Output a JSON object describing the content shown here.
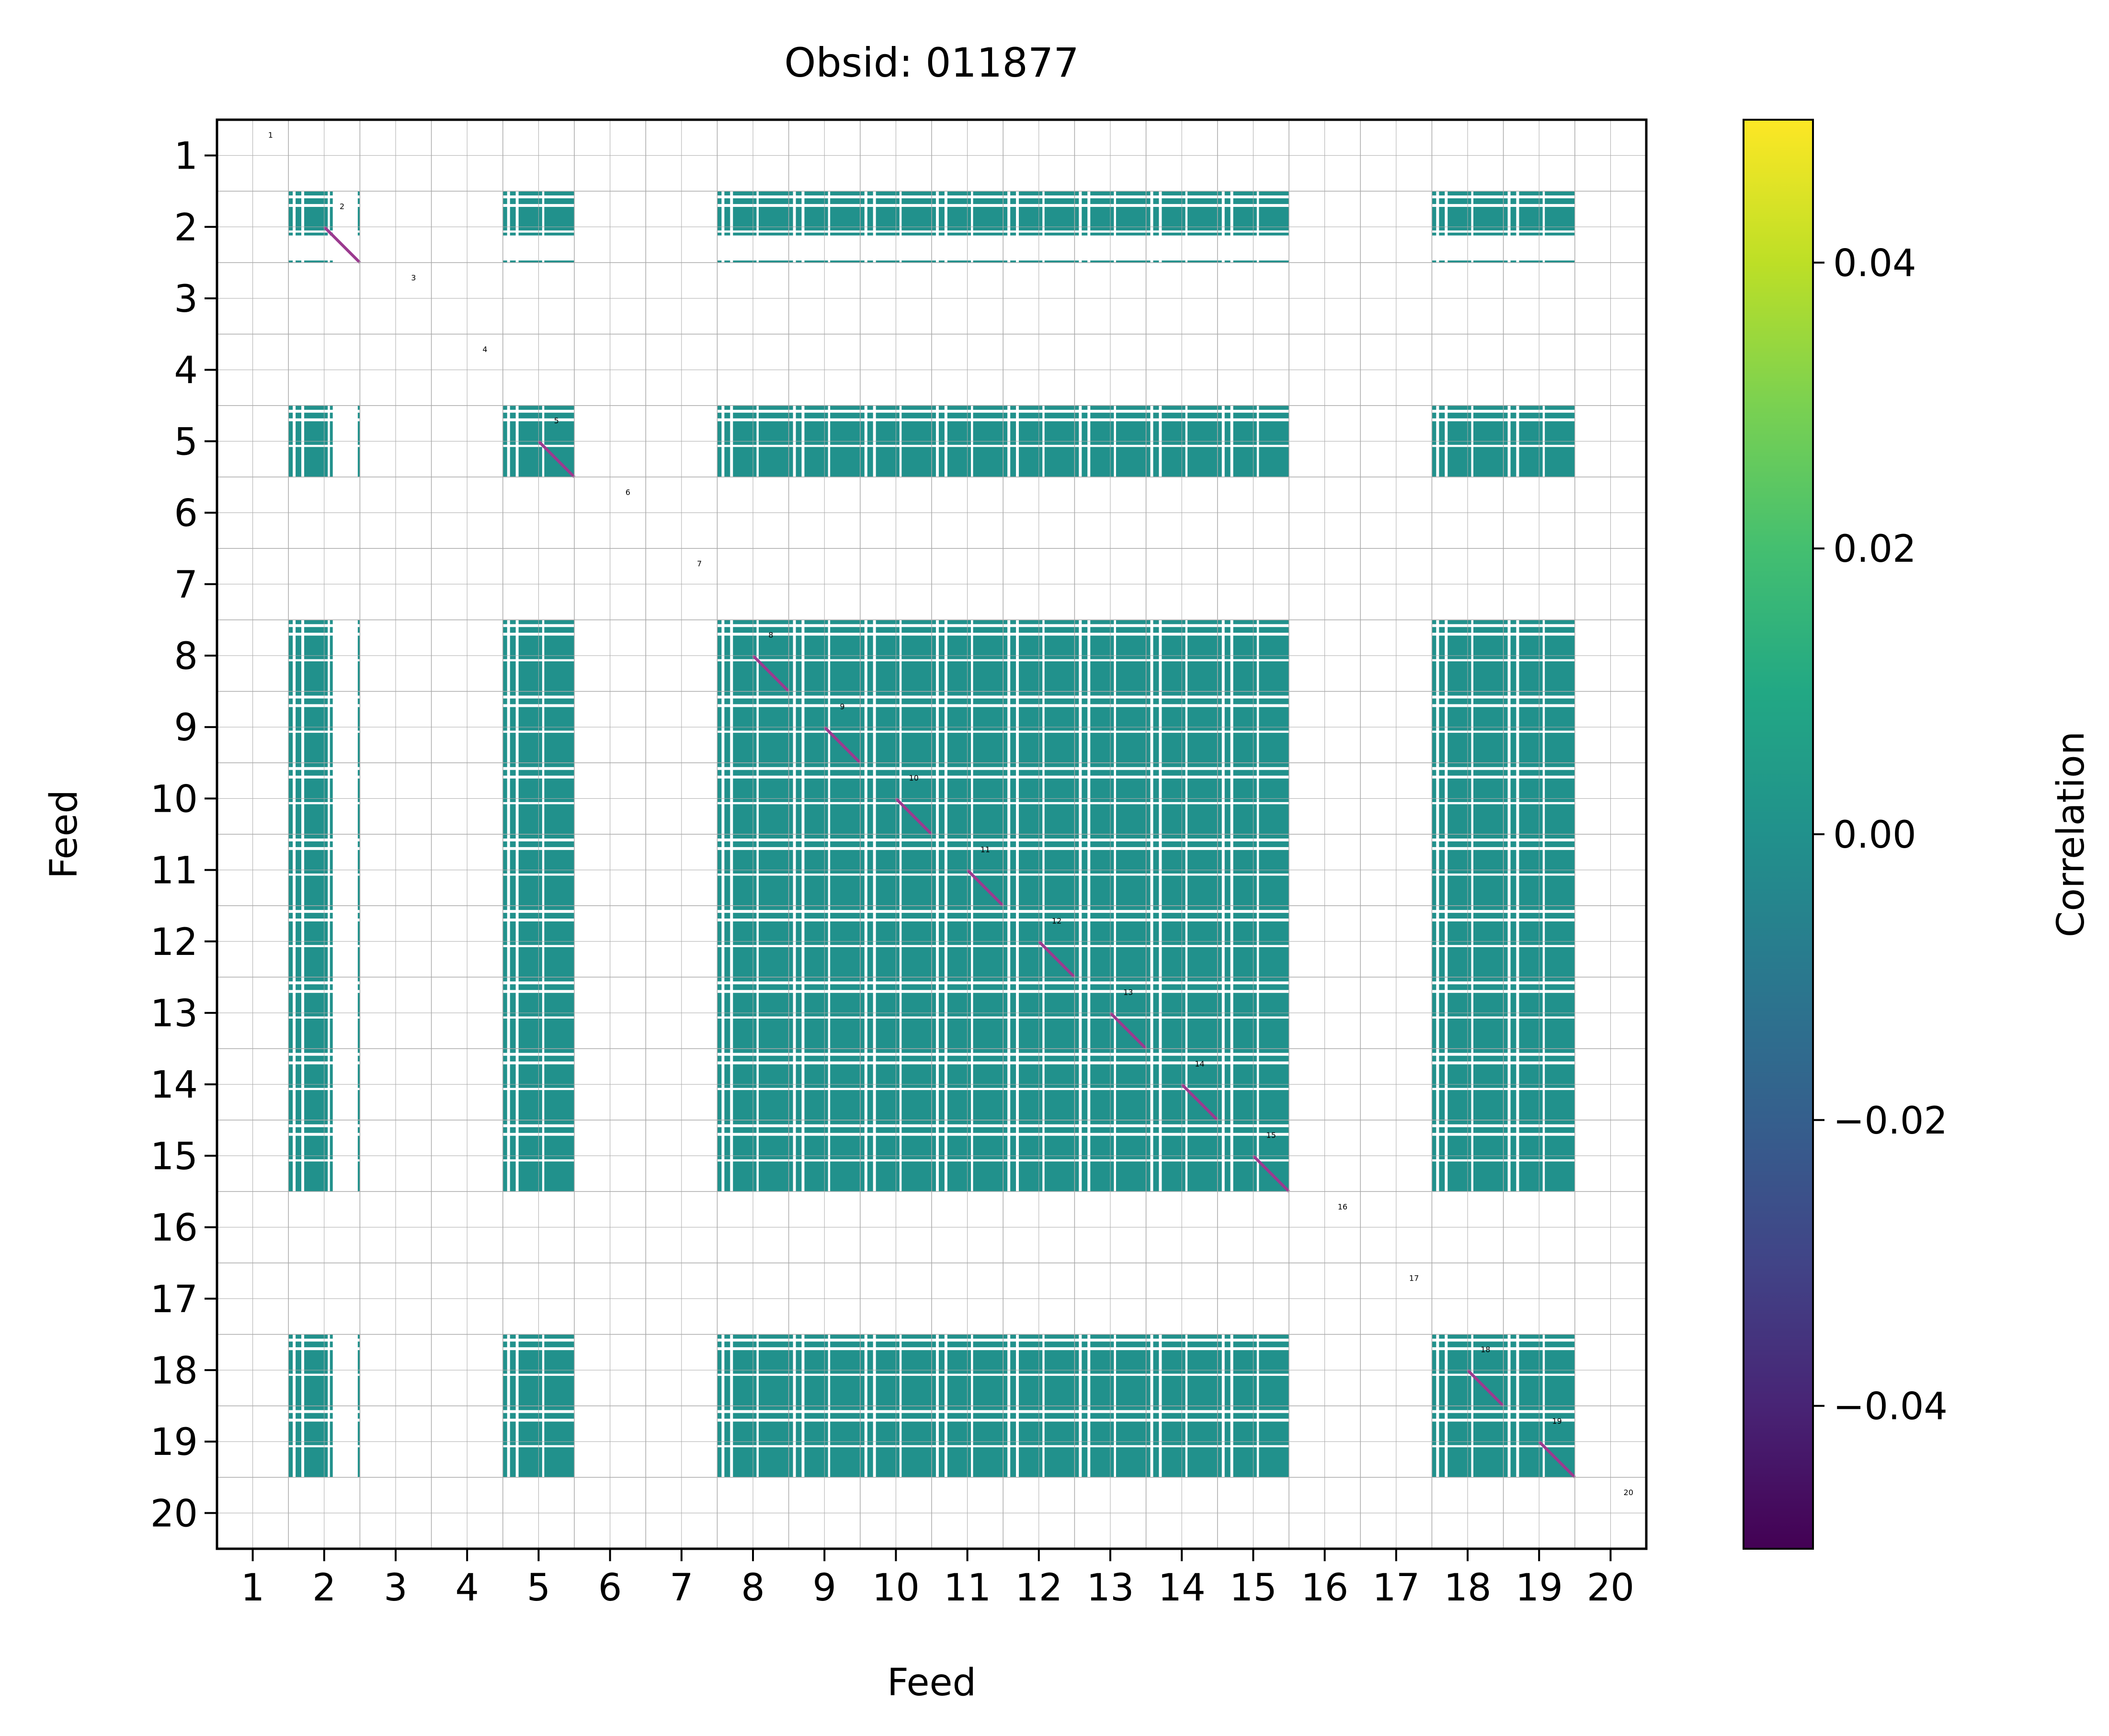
{
  "chart_data": {
    "type": "heatmap",
    "title": "Obsid: 011877",
    "xlabel": "Feed",
    "ylabel": "Feed",
    "feeds": [
      1,
      2,
      3,
      4,
      5,
      6,
      7,
      8,
      9,
      10,
      11,
      12,
      13,
      14,
      15,
      16,
      17,
      18,
      19,
      20
    ],
    "x_tick_labels": [
      "1",
      "2",
      "3",
      "4",
      "5",
      "6",
      "7",
      "8",
      "9",
      "10",
      "11",
      "12",
      "13",
      "14",
      "15",
      "16",
      "17",
      "18",
      "19",
      "20"
    ],
    "y_tick_labels": [
      "1",
      "2",
      "3",
      "4",
      "5",
      "6",
      "7",
      "8",
      "9",
      "10",
      "11",
      "12",
      "13",
      "14",
      "15",
      "16",
      "17",
      "18",
      "19",
      "20"
    ],
    "active_feeds": [
      2,
      5,
      8,
      9,
      10,
      11,
      12,
      13,
      14,
      15,
      18,
      19
    ],
    "block_value": 0.0,
    "diagonal_value": -0.05,
    "colorbar": {
      "label": "Correlation",
      "colormap": "viridis",
      "vmin": -0.05,
      "vmax": 0.05,
      "ticks": [
        0.04,
        0.02,
        0.0,
        -0.02,
        -0.04
      ],
      "tick_labels": [
        "0.04",
        "0.02",
        "0.00",
        "−0.02",
        "−0.04"
      ]
    },
    "feed_annotations": [
      "1",
      "2",
      "3",
      "4",
      "5",
      "6",
      "7",
      "8",
      "9",
      "10",
      "11",
      "12",
      "13",
      "14",
      "15",
      "16",
      "17",
      "18",
      "19",
      "20"
    ],
    "grid": true,
    "colors": {
      "block": "#21918c",
      "gap": "#ffffff",
      "grid": "#aaaaaa",
      "diagonal": "#9b3a8f"
    }
  }
}
